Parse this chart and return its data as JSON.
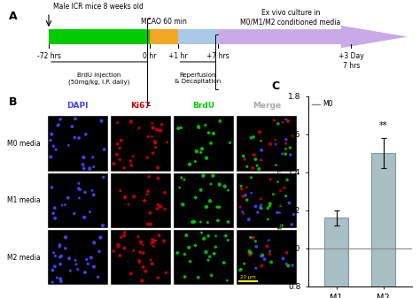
{
  "fig_width": 4.74,
  "fig_height": 3.37,
  "dpi": 100,
  "bar_categories": [
    "M1",
    "M2"
  ],
  "bar_values": [
    1.16,
    1.5
  ],
  "bar_errors": [
    0.04,
    0.08
  ],
  "bar_color": "#a8bfc4",
  "bar_edgecolor": "#7a9aa0",
  "reference_line_y": 1.0,
  "reference_line_color": "#888888",
  "ylim": [
    0.8,
    1.8
  ],
  "yticks": [
    0.8,
    1.0,
    1.2,
    1.4,
    1.6,
    1.8
  ],
  "ylabel": "The ratio of Ki67$^+$BrdU$^+$ cells",
  "legend_label": "M0",
  "significance_label": "**",
  "sig_bar_index": 1,
  "bar_width": 0.5,
  "timeline_green_color": "#00cc00",
  "timeline_orange_color": "#f5a623",
  "timeline_blue_color": "#aac8e8",
  "timeline_purple_color": "#c8aae8",
  "bg_color": "#ffffff",
  "panel_label_fontsize": 9,
  "micro_row_labels": [
    "M0 media",
    "M1 media",
    "M2 media"
  ],
  "micro_col_labels": [
    "DAPI",
    "Ki67",
    "BrdU",
    "Merge"
  ],
  "micro_col_colors": [
    "#4444ff",
    "#cc0000",
    "#00cc00",
    "#aaaaaa"
  ],
  "scale_bar_color": "#ffee00"
}
